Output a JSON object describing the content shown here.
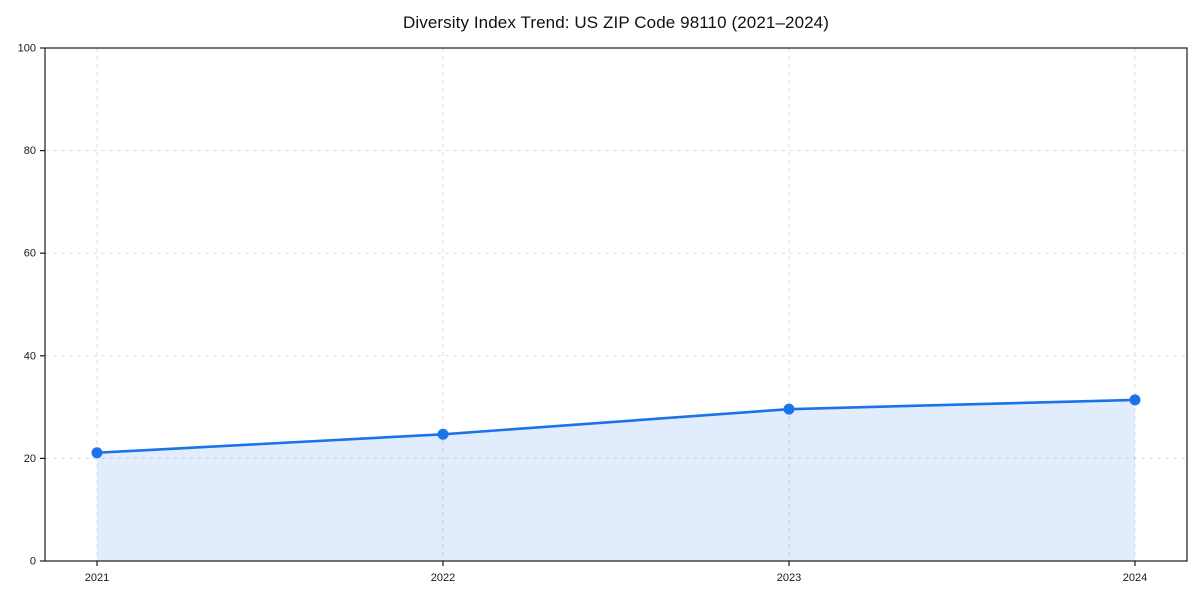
{
  "figure": {
    "title": "Diversity Index Trend: US ZIP Code 98110 (2021–2024)"
  },
  "chart_data": {
    "type": "area",
    "title": "Diversity Index Trend: US ZIP Code 98110 (2021–2024)",
    "x": [
      2021,
      2022,
      2023,
      2024
    ],
    "series": [
      {
        "name": "Diversity Index",
        "values": [
          21.1,
          24.7,
          29.6,
          31.4
        ]
      }
    ],
    "xlabel": "",
    "ylabel": "",
    "ylim": [
      0,
      100
    ],
    "yticks": [
      0,
      20,
      40,
      60,
      80,
      100
    ],
    "xtick_labels": [
      "2021",
      "2022",
      "2023",
      "2024"
    ],
    "grid": true,
    "grid_style": "dashed",
    "legend": false,
    "colors": {
      "line": "#1a73e8",
      "marker": "#1a73e8",
      "fill": "rgba(26,115,232,0.13)",
      "grid": "#dedede",
      "spine": "#1a1a1a",
      "tick_text": "#1a1a1a",
      "background": "#ffffff"
    }
  }
}
